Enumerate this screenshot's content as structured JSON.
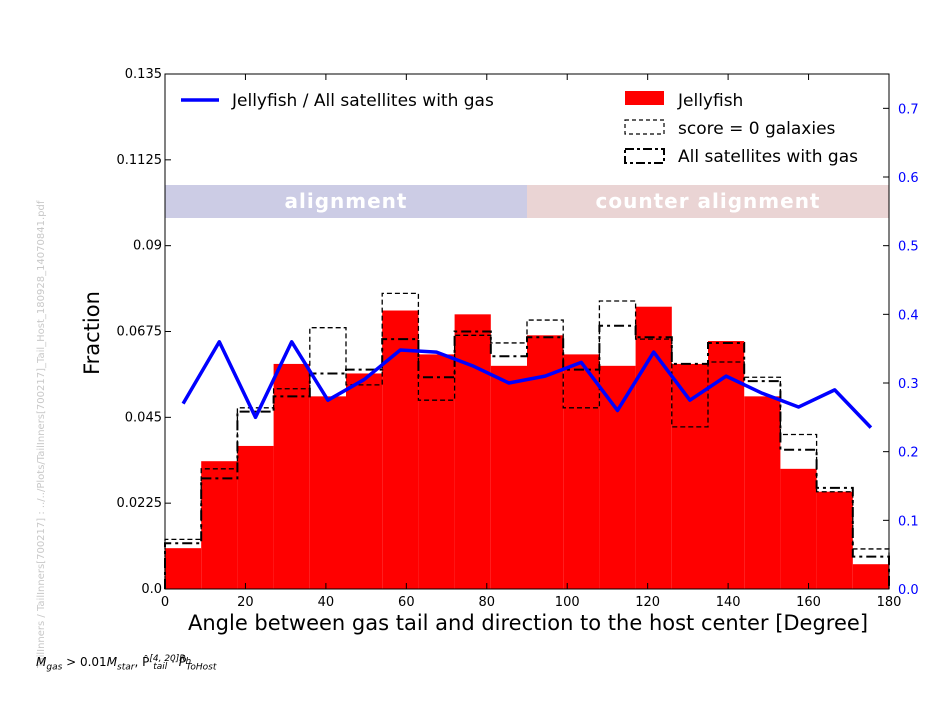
{
  "side_note": "TailInners / TailInners[700217] : ../../Plots/TailInners[700217]_Tail_Host_180928_14070841.pdf",
  "formula": {
    "m_gas": "M",
    "m_gas_sub": "gas",
    "relation": " > 0.01",
    "m_star": "M",
    "m_star_sub": "star",
    "p_tail": ", P̂",
    "p_tail_sup": "[4, 20]R",
    "p_tail_sup_sub": "h",
    "p_tail_sub": "tail",
    "dot": " · ",
    "p_host": "P̂",
    "p_host_sub": "ToHost"
  },
  "chart_data": {
    "type": "bar",
    "xlabel": "Angle between gas tail and direction to the host center [Degree]",
    "ylabel": "Fraction",
    "xlim": [
      0,
      180
    ],
    "ylim": [
      0,
      0.135
    ],
    "y2lim": [
      0,
      0.75
    ],
    "x_ticks": [
      0,
      20,
      40,
      60,
      80,
      100,
      120,
      140,
      160,
      180
    ],
    "x_tick_labels": [
      "0",
      "20",
      "40",
      "60",
      "80",
      "100",
      "120",
      "140",
      "160",
      "180"
    ],
    "y_ticks": [
      0,
      0.0225,
      0.045,
      0.0675,
      0.09,
      0.1125,
      0.135
    ],
    "y_tick_labels": [
      "0.0",
      "0.0225",
      "0.045",
      "0.0675",
      "0.09",
      "0.1125",
      "0.135"
    ],
    "y2_ticks": [
      0,
      0.1,
      0.2,
      0.3,
      0.4,
      0.5,
      0.6,
      0.7
    ],
    "y2_tick_labels": [
      "0.0",
      "0.1",
      "0.2",
      "0.3",
      "0.4",
      "0.5",
      "0.6",
      "0.7"
    ],
    "bin_edges": [
      0,
      9,
      18,
      27,
      36,
      45,
      54,
      63,
      72,
      81,
      90,
      99,
      108,
      117,
      126,
      135,
      144,
      153,
      162,
      171,
      180
    ],
    "series": [
      {
        "name": "Jellyfish",
        "style": "filled",
        "color": "#ff0000",
        "values": [
          0.0107,
          0.0335,
          0.0375,
          0.059,
          0.0505,
          0.0565,
          0.073,
          0.0615,
          0.072,
          0.0585,
          0.0665,
          0.0615,
          0.0585,
          0.074,
          0.059,
          0.065,
          0.0505,
          0.0315,
          0.0255,
          0.0065
        ]
      },
      {
        "name": "score = 0 galaxies",
        "style": "dashed",
        "color": "#000000",
        "values": [
          0.013,
          0.0315,
          0.0475,
          0.0525,
          0.0685,
          0.0535,
          0.0775,
          0.0495,
          0.0665,
          0.0645,
          0.0705,
          0.0475,
          0.0755,
          0.0655,
          0.0425,
          0.0595,
          0.0555,
          0.0405,
          0.0255,
          0.0105
        ]
      },
      {
        "name": "All satellites with gas",
        "style": "dashdot",
        "color": "#000000",
        "values": [
          0.012,
          0.029,
          0.0465,
          0.0505,
          0.0565,
          0.0575,
          0.0655,
          0.0555,
          0.0675,
          0.061,
          0.066,
          0.0575,
          0.069,
          0.066,
          0.059,
          0.0645,
          0.0545,
          0.0365,
          0.0265,
          0.0085
        ]
      },
      {
        "name": "Jellyfish / All satellites with gas",
        "style": "line",
        "axis": "right",
        "color": "#0000ff",
        "x": [
          4.5,
          13.5,
          22.5,
          31.5,
          40.5,
          49.5,
          58.5,
          67.5,
          76.5,
          85.5,
          94.5,
          103.5,
          112.5,
          121.5,
          130.5,
          139.5,
          148.5,
          157.5,
          166.5,
          175.5
        ],
        "values": [
          0.27,
          0.36,
          0.25,
          0.36,
          0.275,
          0.305,
          0.348,
          0.345,
          0.325,
          0.3,
          0.31,
          0.33,
          0.26,
          0.345,
          0.275,
          0.31,
          0.285,
          0.265,
          0.29,
          0.235
        ]
      }
    ],
    "bands": [
      {
        "label": "alignment",
        "x_range": [
          0,
          90
        ],
        "color": "#9999cc"
      },
      {
        "label": "counter alignment",
        "x_range": [
          90,
          180
        ],
        "color": "#d6aaaa"
      }
    ],
    "legend_left": {
      "placement": "top-left",
      "entries": [
        "Jellyfish / All satellites with gas"
      ]
    },
    "legend_right": {
      "placement": "top-right",
      "entries": [
        "Jellyfish",
        "score = 0 galaxies",
        "All satellites with gas"
      ]
    },
    "axis_colors": {
      "left": "#000000",
      "right": "#0000ff"
    },
    "grid": false
  }
}
